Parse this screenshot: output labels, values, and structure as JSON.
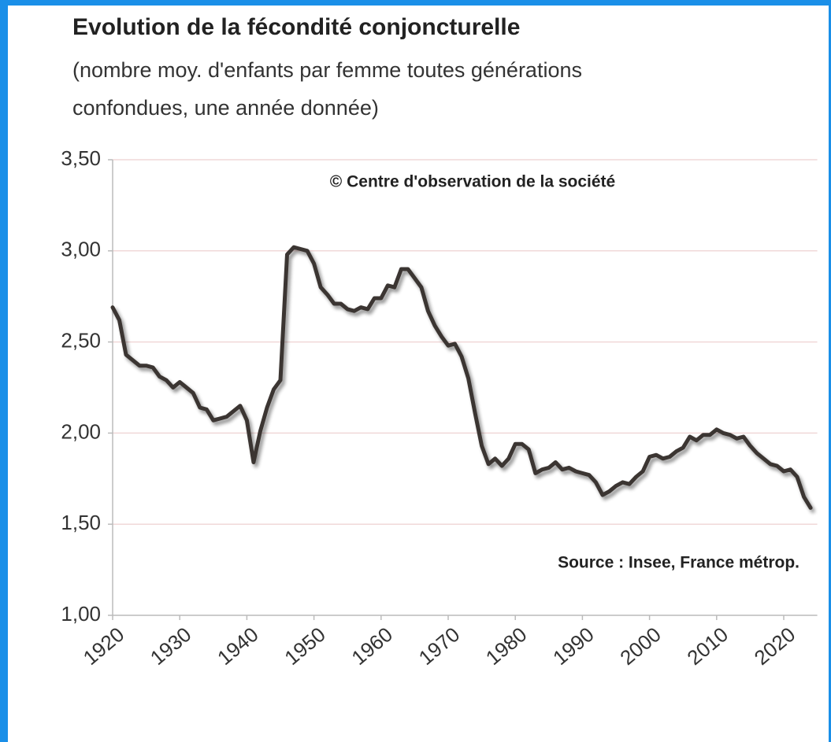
{
  "chart_data": {
    "type": "line",
    "title": "Evolution de la fécondité conjoncturelle",
    "subtitle": [
      "(nombre moy. d'enfants par femme toutes générations",
      "confondues, une année donnée)"
    ],
    "annotations": [
      "© Centre d'observation de la société",
      "Source : Insee, France métrop."
    ],
    "x": [
      1920,
      1921,
      1922,
      1923,
      1924,
      1925,
      1926,
      1927,
      1928,
      1929,
      1930,
      1931,
      1932,
      1933,
      1934,
      1935,
      1936,
      1937,
      1938,
      1939,
      1940,
      1941,
      1942,
      1943,
      1944,
      1945,
      1946,
      1947,
      1948,
      1949,
      1950,
      1951,
      1952,
      1953,
      1954,
      1955,
      1956,
      1957,
      1958,
      1959,
      1960,
      1961,
      1962,
      1963,
      1964,
      1965,
      1966,
      1967,
      1968,
      1969,
      1970,
      1971,
      1972,
      1973,
      1974,
      1975,
      1976,
      1977,
      1978,
      1979,
      1980,
      1981,
      1982,
      1983,
      1984,
      1985,
      1986,
      1987,
      1988,
      1989,
      1990,
      1991,
      1992,
      1993,
      1994,
      1995,
      1996,
      1997,
      1998,
      1999,
      2000,
      2001,
      2002,
      2003,
      2004,
      2005,
      2006,
      2007,
      2008,
      2009,
      2010,
      2011,
      2012,
      2013,
      2014,
      2015,
      2016,
      2017,
      2018,
      2019,
      2020,
      2021,
      2022,
      2023,
      2024
    ],
    "series": [
      {
        "name": "Fécondité",
        "color": "#3b3530",
        "values": [
          2.69,
          2.62,
          2.43,
          2.4,
          2.37,
          2.37,
          2.36,
          2.31,
          2.29,
          2.25,
          2.28,
          2.25,
          2.22,
          2.14,
          2.13,
          2.07,
          2.08,
          2.09,
          2.12,
          2.15,
          2.07,
          1.84,
          2.01,
          2.14,
          2.24,
          2.29,
          2.98,
          3.02,
          3.01,
          3.0,
          2.93,
          2.8,
          2.76,
          2.71,
          2.71,
          2.68,
          2.67,
          2.69,
          2.68,
          2.74,
          2.74,
          2.81,
          2.8,
          2.9,
          2.9,
          2.85,
          2.8,
          2.67,
          2.59,
          2.53,
          2.48,
          2.49,
          2.42,
          2.3,
          2.11,
          1.93,
          1.83,
          1.86,
          1.82,
          1.86,
          1.94,
          1.94,
          1.91,
          1.78,
          1.8,
          1.81,
          1.84,
          1.8,
          1.81,
          1.79,
          1.78,
          1.77,
          1.73,
          1.66,
          1.68,
          1.71,
          1.73,
          1.72,
          1.76,
          1.79,
          1.87,
          1.88,
          1.86,
          1.87,
          1.9,
          1.92,
          1.98,
          1.96,
          1.99,
          1.99,
          2.02,
          2.0,
          1.99,
          1.97,
          1.98,
          1.93,
          1.89,
          1.86,
          1.83,
          1.82,
          1.79,
          1.8,
          1.76,
          1.65,
          1.59
        ]
      }
    ],
    "xlim": [
      1920,
      2025
    ],
    "xticks": [
      1920,
      1930,
      1940,
      1950,
      1960,
      1970,
      1980,
      1990,
      2000,
      2010,
      2020
    ],
    "ylim": [
      1.0,
      3.5
    ],
    "yticks": [
      {
        "value": 1.0,
        "label": "1,00"
      },
      {
        "value": 1.5,
        "label": "1,50"
      },
      {
        "value": 2.0,
        "label": "2,00"
      },
      {
        "value": 2.5,
        "label": "2,50"
      },
      {
        "value": 3.0,
        "label": "3,00"
      },
      {
        "value": 3.5,
        "label": "3,50"
      }
    ],
    "grid": true
  }
}
